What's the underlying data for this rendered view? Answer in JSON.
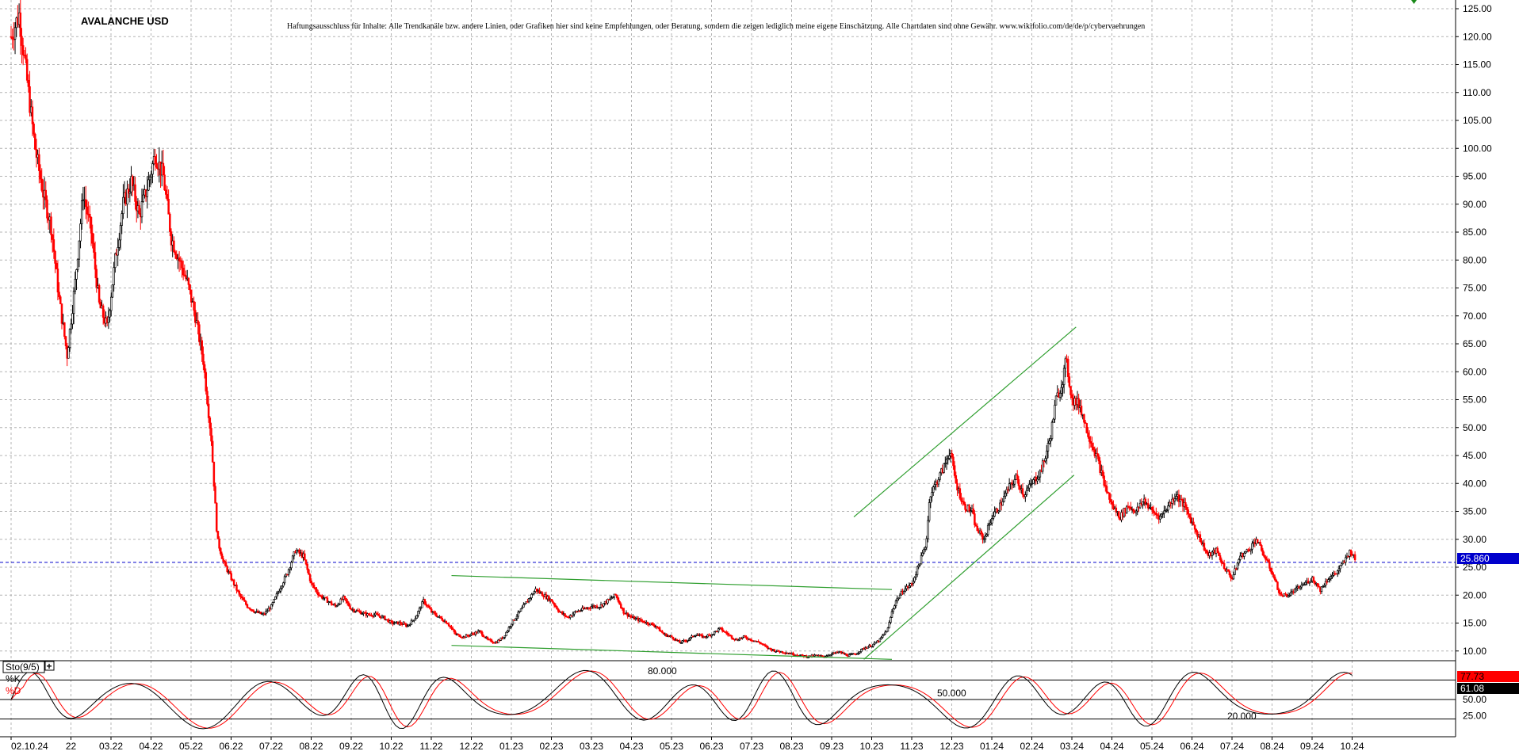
{
  "title": "AVALANCHE USD",
  "disclaimer": "Haftungsausschluss für Inhalte: Alle Trendkanäle bzw. andere Linien, oder Grafiken hier sind keine Empfehlungen, oder Beratung, sondern die zeigen lediglich meine eigene Einschätzung. Alle Chartdaten sind ohne Gewähr.  www.wikifolio.com/de/de/p/cybervaehrungen",
  "colors": {
    "up_candle": "#000000",
    "down_candle": "#ff0000",
    "trendline": "#2e9e2e",
    "current_price_line": "#0000cc",
    "grid": "#b4b4b4",
    "price_tag_bg": "#0000cc",
    "k_tag_bg": "#ff0000",
    "d_tag_bg": "#000000"
  },
  "chart_data": [
    {
      "type": "candlestick",
      "title": "AVALANCHE USD",
      "ylim": [
        7,
        126
      ],
      "grid": true,
      "y_ticks": [
        "125.00",
        "120.00",
        "115.00",
        "110.00",
        "105.00",
        "100.00",
        "95.00",
        "90.00",
        "85.00",
        "80.00",
        "75.00",
        "70.00",
        "65.00",
        "60.00",
        "55.00",
        "50.00",
        "45.00",
        "40.00",
        "35.00",
        "30.00",
        "25.00",
        "20.00",
        "15.00",
        "10.00"
      ],
      "x_ticks": [
        "02.10.24",
        "22",
        "03.22",
        "04.22",
        "05.22",
        "06.22",
        "07.22",
        "08.22",
        "09.22",
        "10.22",
        "11.22",
        "12.22",
        "01.23",
        "02.23",
        "03.23",
        "04.23",
        "05.23",
        "06.23",
        "07.23",
        "08.23",
        "09.23",
        "10.23",
        "11.23",
        "12.23",
        "01.24",
        "02.24",
        "03.24",
        "04.24",
        "05.24",
        "06.24",
        "07.24",
        "08.24",
        "09.24",
        "10.24"
      ],
      "current_price": 25.86,
      "current_price_label": "25.860",
      "price_path": [
        [
          0,
          120
        ],
        [
          0.2,
          124
        ],
        [
          0.4,
          112
        ],
        [
          0.6,
          100
        ],
        [
          0.8,
          92
        ],
        [
          1.0,
          86
        ],
        [
          1.2,
          73
        ],
        [
          1.4,
          63
        ],
        [
          1.6,
          76
        ],
        [
          1.8,
          92
        ],
        [
          2.0,
          85
        ],
        [
          2.2,
          72
        ],
        [
          2.4,
          68
        ],
        [
          2.6,
          80
        ],
        [
          2.8,
          90
        ],
        [
          3.0,
          94
        ],
        [
          3.2,
          88
        ],
        [
          3.4,
          93
        ],
        [
          3.6,
          99
        ],
        [
          3.8,
          95
        ],
        [
          4.0,
          84
        ],
        [
          4.2,
          80
        ],
        [
          4.4,
          76
        ],
        [
          4.6,
          70
        ],
        [
          4.8,
          62
        ],
        [
          5.0,
          48
        ],
        [
          5.15,
          30
        ],
        [
          5.3,
          26
        ],
        [
          5.5,
          23
        ],
        [
          5.7,
          20
        ],
        [
          5.9,
          18
        ],
        [
          6.1,
          17
        ],
        [
          6.3,
          16.5
        ],
        [
          6.5,
          18
        ],
        [
          6.7,
          21
        ],
        [
          6.9,
          24
        ],
        [
          7.1,
          28
        ],
        [
          7.3,
          27
        ],
        [
          7.5,
          22
        ],
        [
          7.7,
          20
        ],
        [
          7.9,
          19
        ],
        [
          8.1,
          18
        ],
        [
          8.3,
          19.5
        ],
        [
          8.5,
          17.5
        ],
        [
          8.7,
          17
        ],
        [
          8.9,
          16.5
        ],
        [
          9.1,
          16.5
        ],
        [
          9.3,
          16
        ],
        [
          9.5,
          15
        ],
        [
          9.7,
          15
        ],
        [
          9.9,
          14.5
        ],
        [
          10.1,
          16
        ],
        [
          10.3,
          19
        ],
        [
          10.5,
          17
        ],
        [
          10.7,
          16
        ],
        [
          10.9,
          15
        ],
        [
          11.1,
          13
        ],
        [
          11.3,
          12.5
        ],
        [
          11.5,
          13
        ],
        [
          11.7,
          13.5
        ],
        [
          11.9,
          12
        ],
        [
          12.1,
          11.5
        ],
        [
          12.3,
          12.5
        ],
        [
          12.5,
          15
        ],
        [
          12.7,
          17
        ],
        [
          12.9,
          19
        ],
        [
          13.1,
          21
        ],
        [
          13.3,
          20
        ],
        [
          13.5,
          19
        ],
        [
          13.7,
          17
        ],
        [
          13.9,
          16
        ],
        [
          14.1,
          17
        ],
        [
          14.3,
          17.5
        ],
        [
          14.5,
          18
        ],
        [
          14.7,
          18
        ],
        [
          14.9,
          19
        ],
        [
          15.1,
          20
        ],
        [
          15.3,
          17
        ],
        [
          15.5,
          16
        ],
        [
          15.7,
          15.5
        ],
        [
          15.9,
          15
        ],
        [
          16.1,
          14.5
        ],
        [
          16.3,
          13
        ],
        [
          16.5,
          12.5
        ],
        [
          16.7,
          11.5
        ],
        [
          16.9,
          12
        ],
        [
          17.1,
          13
        ],
        [
          17.3,
          12.5
        ],
        [
          17.5,
          13
        ],
        [
          17.7,
          14
        ],
        [
          17.9,
          13
        ],
        [
          18.1,
          12
        ],
        [
          18.3,
          12.5
        ],
        [
          18.5,
          12
        ],
        [
          18.7,
          11.5
        ],
        [
          18.9,
          10.5
        ],
        [
          19.1,
          10
        ],
        [
          19.3,
          9.8
        ],
        [
          19.5,
          9.5
        ],
        [
          19.7,
          9.2
        ],
        [
          19.9,
          9
        ],
        [
          20.1,
          9.2
        ],
        [
          20.3,
          9
        ],
        [
          20.5,
          9.5
        ],
        [
          20.7,
          9.8
        ],
        [
          20.9,
          9.2
        ],
        [
          21.1,
          9.5
        ],
        [
          21.3,
          10.5
        ],
        [
          21.5,
          11
        ],
        [
          21.7,
          12
        ],
        [
          21.9,
          14
        ],
        [
          22.0,
          17
        ],
        [
          22.1,
          19
        ],
        [
          22.3,
          21
        ],
        [
          22.5,
          22
        ],
        [
          22.7,
          26
        ],
        [
          22.85,
          29
        ],
        [
          22.95,
          38
        ],
        [
          23.1,
          40
        ],
        [
          23.3,
          43
        ],
        [
          23.45,
          46
        ],
        [
          23.6,
          40
        ],
        [
          23.8,
          36
        ],
        [
          24.0,
          35
        ],
        [
          24.1,
          32
        ],
        [
          24.3,
          30
        ],
        [
          24.5,
          34
        ],
        [
          24.7,
          36
        ],
        [
          24.9,
          39
        ],
        [
          25.1,
          41
        ],
        [
          25.3,
          38
        ],
        [
          25.5,
          40
        ],
        [
          25.7,
          42
        ],
        [
          25.8,
          44
        ],
        [
          25.95,
          48
        ],
        [
          26.1,
          55
        ],
        [
          26.25,
          58
        ],
        [
          26.35,
          62
        ],
        [
          26.5,
          55
        ],
        [
          26.7,
          54
        ],
        [
          26.85,
          50
        ],
        [
          27.0,
          47
        ],
        [
          27.15,
          44
        ],
        [
          27.3,
          40
        ],
        [
          27.5,
          36
        ],
        [
          27.7,
          34
        ],
        [
          27.9,
          36
        ],
        [
          28.1,
          35
        ],
        [
          28.3,
          37
        ],
        [
          28.5,
          35
        ],
        [
          28.7,
          34
        ],
        [
          28.9,
          36
        ],
        [
          29.1,
          38
        ],
        [
          29.3,
          36
        ],
        [
          29.5,
          33
        ],
        [
          29.7,
          30
        ],
        [
          29.9,
          27
        ],
        [
          30.1,
          28
        ],
        [
          30.3,
          25
        ],
        [
          30.5,
          23
        ],
        [
          30.7,
          27
        ],
        [
          30.9,
          28
        ],
        [
          31.1,
          30
        ],
        [
          31.3,
          27
        ],
        [
          31.5,
          24
        ],
        [
          31.7,
          20
        ],
        [
          31.9,
          20
        ],
        [
          32.1,
          21
        ],
        [
          32.3,
          22
        ],
        [
          32.5,
          23
        ],
        [
          32.7,
          21
        ],
        [
          32.9,
          23
        ],
        [
          33.1,
          24
        ],
        [
          33.3,
          26
        ],
        [
          33.45,
          28
        ],
        [
          33.6,
          25.86
        ]
      ],
      "trendlines": [
        {
          "x1": 11.0,
          "y1": 23.5,
          "x2": 22.0,
          "y2": 21.0
        },
        {
          "x1": 11.0,
          "y1": 11.0,
          "x2": 22.0,
          "y2": 8.5
        },
        {
          "x1": 21.05,
          "y1": 34.0,
          "x2": 26.6,
          "y2": 68.0
        },
        {
          "x1": 21.3,
          "y1": 8.5,
          "x2": 26.55,
          "y2": 41.5
        }
      ]
    },
    {
      "type": "line",
      "indicator": "Sto(9/5)",
      "ylim": [
        0,
        100
      ],
      "y_ticks": [
        "50.00",
        "25.00"
      ],
      "levels": [
        80,
        50,
        20
      ],
      "level_labels": [
        "80.000",
        "50.000",
        "20.000"
      ],
      "series": [
        {
          "name": "%K",
          "last_value": 77.73,
          "last_label": "77.73"
        },
        {
          "name": "%D",
          "last_value": 61.08,
          "last_label": "61.08"
        }
      ]
    }
  ]
}
